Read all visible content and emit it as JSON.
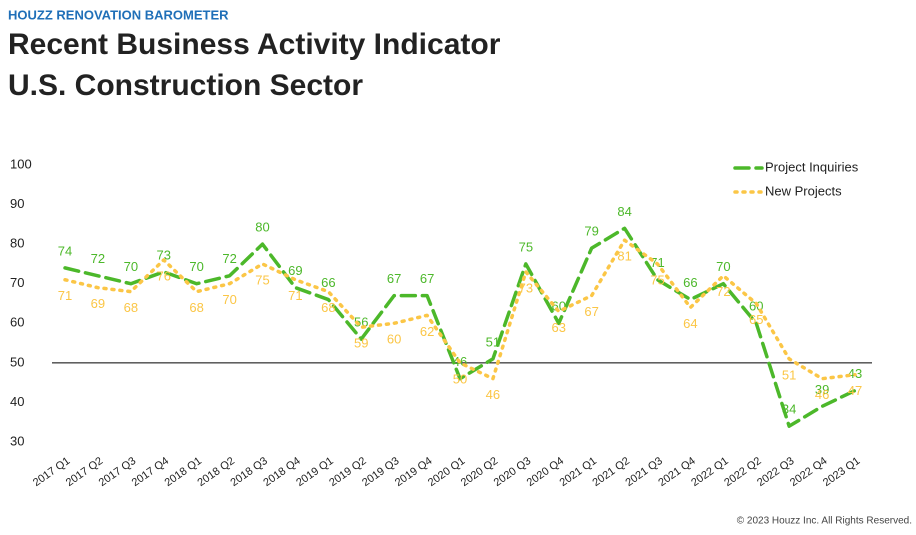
{
  "header": "HOUZZ RENOVATION BAROMETER",
  "footer": "© 2023 Houzz Inc. All Rights Reserved.",
  "chart_data": {
    "type": "line",
    "title": [
      "Recent Business Activity Indicator",
      "U.S. Construction Sector"
    ],
    "categories": [
      "2017 Q1",
      "2017 Q2",
      "2017 Q3",
      "2017 Q4",
      "2018 Q1",
      "2018 Q2",
      "2018 Q3",
      "2018 Q4",
      "2019 Q1",
      "2019 Q2",
      "2019 Q3",
      "2019 Q4",
      "2020 Q1",
      "2020 Q2",
      "2020 Q3",
      "2020 Q4",
      "2021 Q1",
      "2021 Q2",
      "2021 Q3",
      "2021 Q4",
      "2022 Q1",
      "2022 Q2",
      "2022 Q3",
      "2022 Q4",
      "2023 Q1"
    ],
    "series": [
      {
        "name": "Project Inquiries",
        "color": "#4cb82a",
        "dash": "dashed",
        "values": [
          74,
          72,
          70,
          73,
          70,
          72,
          80,
          69,
          66,
          56,
          67,
          67,
          46,
          51,
          75,
          60,
          79,
          84,
          71,
          66,
          70,
          60,
          34,
          39,
          43
        ]
      },
      {
        "name": "New Projects",
        "color": "#fbc646",
        "dash": "dotted",
        "values": [
          71,
          69,
          68,
          76,
          68,
          70,
          75,
          71,
          68,
          59,
          60,
          62,
          50,
          46,
          73,
          63,
          67,
          81,
          75,
          64,
          72,
          65,
          51,
          46,
          47
        ]
      }
    ],
    "ylim": [
      30,
      100
    ],
    "yticks": [
      30,
      40,
      50,
      60,
      70,
      80,
      90,
      100
    ],
    "reference_line": 50,
    "grid": false,
    "legend": "top-right"
  }
}
